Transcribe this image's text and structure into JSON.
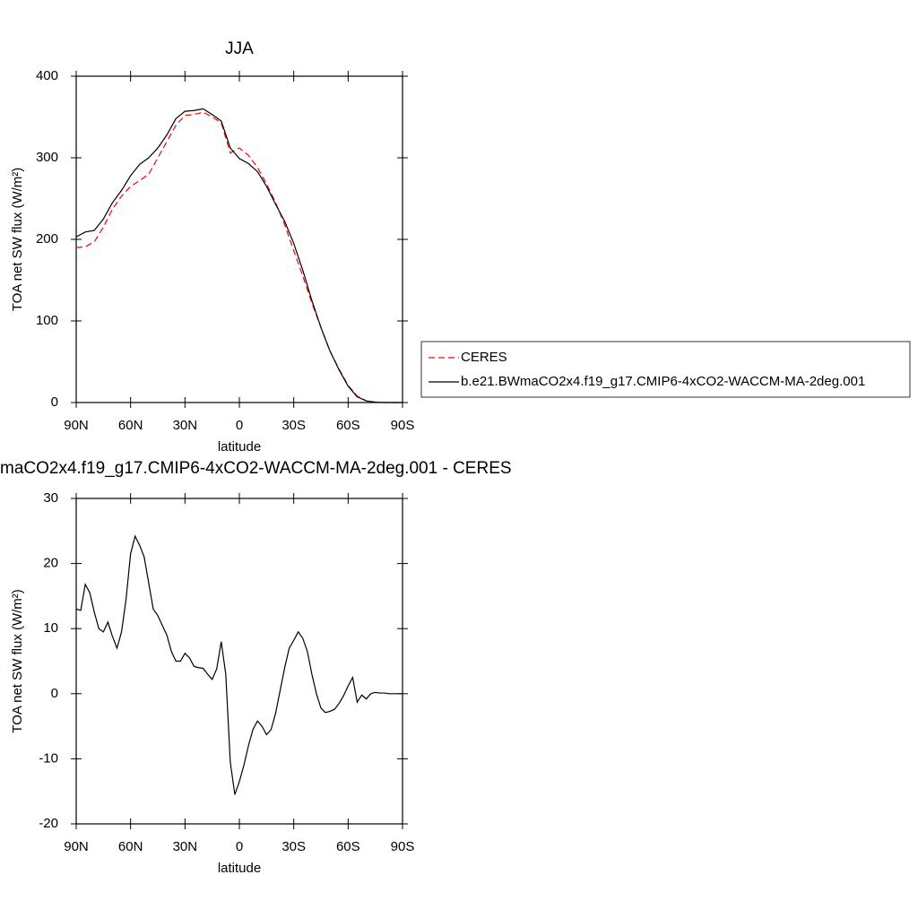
{
  "chart_data": [
    {
      "type": "line",
      "title": "JJA",
      "xlabel": "latitude",
      "ylabel": "TOA net SW flux (W/m²)",
      "x": [
        90,
        85,
        80,
        75,
        70,
        65,
        60,
        55,
        50,
        45,
        40,
        35,
        30,
        25,
        20,
        15,
        10,
        5,
        0,
        -5,
        -10,
        -15,
        -20,
        -25,
        -30,
        -35,
        -40,
        -45,
        -50,
        -55,
        -60,
        -65,
        -70,
        -75,
        -80,
        -85,
        -90
      ],
      "xlim": [
        90,
        -90
      ],
      "xticks": [
        {
          "value": 90,
          "label": "90N"
        },
        {
          "value": 60,
          "label": "60N"
        },
        {
          "value": 30,
          "label": "30N"
        },
        0,
        {
          "value": -30,
          "label": "30S"
        },
        {
          "value": -60,
          "label": "60S"
        },
        {
          "value": -90,
          "label": "90S"
        }
      ],
      "ylim": [
        0,
        400
      ],
      "yticks": [
        0,
        100,
        200,
        300,
        400
      ],
      "series": [
        {
          "name": "CERES",
          "color": "#ff0000",
          "line_style": "dashed",
          "values": [
            190,
            191,
            197,
            215,
            237,
            253,
            265,
            272,
            280,
            300,
            320,
            340,
            352,
            353,
            356,
            350,
            343,
            306,
            312,
            303,
            288,
            268,
            245,
            218,
            186,
            155,
            122,
            92,
            63,
            41,
            21,
            8,
            2,
            0.5,
            0,
            0,
            0
          ]
        },
        {
          "name": "b.e21.BWmaCO2x4.f19_g17.CMIP6-4xCO2-WACCM-MA-2deg.001",
          "color": "#000000",
          "line_style": "solid",
          "values": [
            203,
            209,
            211,
            225,
            245,
            260,
            278,
            292,
            300,
            312,
            328,
            348,
            357,
            358,
            360,
            353,
            345,
            312,
            299,
            293,
            283,
            265,
            243,
            222,
            195,
            162,
            125,
            92,
            63,
            40,
            20,
            7,
            2,
            0.5,
            0,
            0,
            0
          ]
        }
      ]
    },
    {
      "type": "line",
      "title": "maCO2x4.f19_g17.CMIP6-4xCO2-WACCM-MA-2deg.001 - CERES",
      "xlabel": "latitude",
      "ylabel": "TOA net SW flux (W/m²)",
      "x": [
        90,
        87.5,
        85,
        82.5,
        80,
        77.5,
        75,
        72.5,
        70,
        67.5,
        65,
        62.5,
        60,
        57.5,
        55,
        52.5,
        50,
        47.5,
        45,
        42.5,
        40,
        37.5,
        35,
        32.5,
        30,
        27.5,
        25,
        22.5,
        20,
        17.5,
        15,
        12.5,
        10,
        7.5,
        5,
        2.5,
        0,
        -2.5,
        -5,
        -7.5,
        -10,
        -12.5,
        -15,
        -17.5,
        -20,
        -22.5,
        -25,
        -27.5,
        -30,
        -32.5,
        -35,
        -37.5,
        -40,
        -42.5,
        -45,
        -47.5,
        -50,
        -52.5,
        -55,
        -57.5,
        -60,
        -62.5,
        -65,
        -67.5,
        -70,
        -72.5,
        -75,
        -77.5,
        -80,
        -82.5,
        -85,
        -87.5,
        -90
      ],
      "xlim": [
        90,
        -90
      ],
      "xticks": [
        {
          "value": 90,
          "label": "90N"
        },
        {
          "value": 60,
          "label": "60N"
        },
        {
          "value": 30,
          "label": "30N"
        },
        0,
        {
          "value": -30,
          "label": "30S"
        },
        {
          "value": -60,
          "label": "60S"
        },
        {
          "value": -90,
          "label": "90S"
        }
      ],
      "ylim": [
        -20,
        30
      ],
      "yticks": [
        -20,
        -10,
        0,
        10,
        20,
        30
      ],
      "series": [
        {
          "color": "#000000",
          "line_style": "solid",
          "values": [
            13,
            12.8,
            16.8,
            15.5,
            12.5,
            10,
            9.5,
            11,
            8.8,
            7,
            9.5,
            14.5,
            21.5,
            24.2,
            22.8,
            21,
            17,
            13,
            12,
            10.5,
            9,
            6.5,
            5,
            5,
            6.2,
            5.5,
            4.2,
            4,
            3.9,
            3,
            2.2,
            3.8,
            8,
            3,
            -10.5,
            -15.5,
            -13.5,
            -11,
            -8,
            -5.5,
            -4.2,
            -5,
            -6.3,
            -5.5,
            -3,
            0.5,
            4,
            7,
            8.2,
            9.5,
            8.5,
            6.5,
            3,
            0,
            -2.2,
            -2.9,
            -2.7,
            -2.4,
            -1.5,
            -0.3,
            1.2,
            2.5,
            -1.3,
            -0.2,
            -0.8,
            0,
            0.2,
            0.1,
            0.1,
            0,
            0,
            0,
            0
          ]
        }
      ]
    }
  ]
}
